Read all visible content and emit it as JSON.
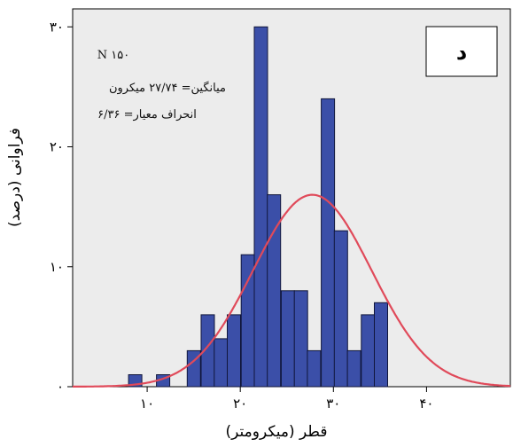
{
  "chart_data": {
    "type": "bar",
    "panel_label": "د",
    "xlabel": "قطر (میکرومتر)",
    "ylabel": "فراوانی (درصد)",
    "stats": {
      "n": "N ۱۵۰",
      "mean": "میانگین= ۲۷/۷۴ میکرون",
      "sd": "انحراف معیار= ۶/۳۶"
    },
    "x_ticks": [
      {
        "value": 10,
        "label": "۱۰"
      },
      {
        "value": 20,
        "label": "۲۰"
      },
      {
        "value": 30,
        "label": "۳۰"
      },
      {
        "value": 40,
        "label": "۴۰"
      }
    ],
    "y_ticks": [
      {
        "value": 0,
        "label": "۰"
      },
      {
        "value": 10,
        "label": "۱۰"
      },
      {
        "value": 20,
        "label": "۲۰"
      },
      {
        "value": 30,
        "label": "۳۰"
      }
    ],
    "xlim": [
      2,
      49
    ],
    "ylim": [
      0,
      31.5
    ],
    "bin_width": 1.43,
    "bins": [
      {
        "x0": 8.0,
        "value": 1
      },
      {
        "x0": 11.0,
        "value": 1
      },
      {
        "x0": 14.3,
        "value": 3
      },
      {
        "x0": 15.8,
        "value": 6
      },
      {
        "x0": 17.2,
        "value": 4
      },
      {
        "x0": 18.6,
        "value": 6
      },
      {
        "x0": 20.1,
        "value": 11
      },
      {
        "x0": 21.5,
        "value": 30
      },
      {
        "x0": 22.9,
        "value": 16
      },
      {
        "x0": 24.4,
        "value": 8
      },
      {
        "x0": 25.8,
        "value": 8
      },
      {
        "x0": 27.2,
        "value": 3
      },
      {
        "x0": 28.7,
        "value": 24
      },
      {
        "x0": 30.1,
        "value": 13
      },
      {
        "x0": 31.5,
        "value": 3
      },
      {
        "x0": 33.0,
        "value": 6
      },
      {
        "x0": 34.4,
        "value": 7
      }
    ],
    "normal_curve": {
      "mean": 27.74,
      "sd": 6.36,
      "peak": 16
    },
    "colors": {
      "bar_fill": "#3b4fa8",
      "bar_stroke": "#10163a",
      "curve": "#e04a5a",
      "plot_bg": "#ececec"
    }
  }
}
